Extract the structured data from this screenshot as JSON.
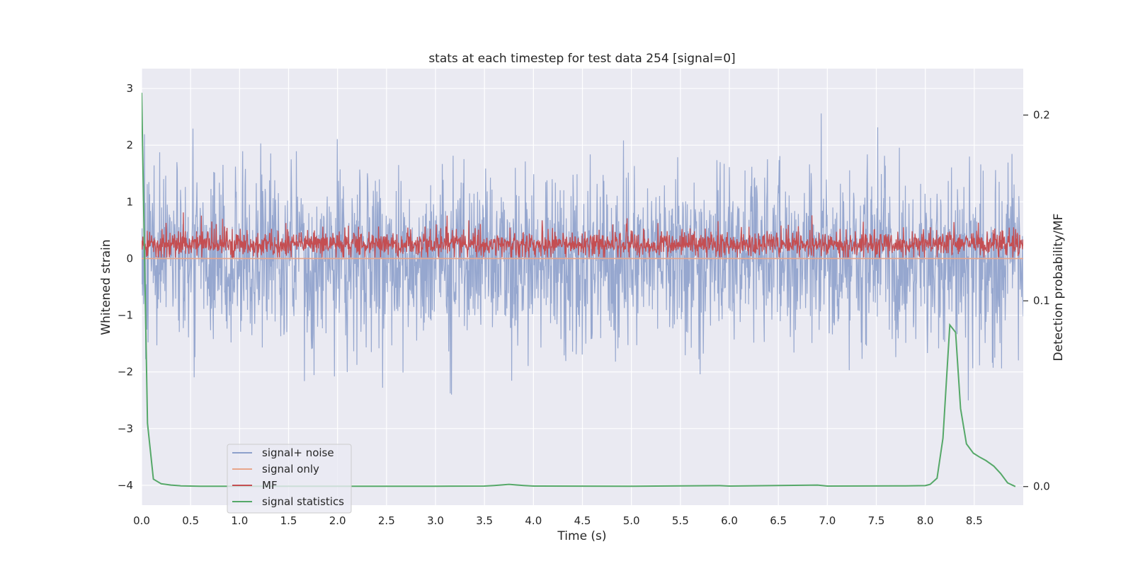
{
  "chart_data": {
    "type": "line",
    "title": "stats at each timestep for test data 254 [signal=0]",
    "xlabel": "Time (s)",
    "ylabel": "Whitened strain",
    "y2label": "Detection probability/MF",
    "xlim": [
      0,
      9
    ],
    "ylim": [
      -4.35,
      3.35
    ],
    "y2lim": [
      -0.01,
      0.225
    ],
    "x_ticks": [
      0.0,
      0.5,
      1.0,
      1.5,
      2.0,
      2.5,
      3.0,
      3.5,
      4.0,
      4.5,
      5.0,
      5.5,
      6.0,
      6.5,
      7.0,
      7.5,
      8.0,
      8.5
    ],
    "x_tick_labels": [
      "0.0",
      "0.5",
      "1.0",
      "1.5",
      "2.0",
      "2.5",
      "3.0",
      "3.5",
      "4.0",
      "4.5",
      "5.0",
      "5.5",
      "6.0",
      "6.5",
      "7.0",
      "7.5",
      "8.0",
      "8.5"
    ],
    "y_ticks": [
      -4,
      -3,
      -2,
      -1,
      0,
      1,
      2,
      3
    ],
    "y_tick_labels": [
      "−4",
      "−3",
      "−2",
      "−1",
      "0",
      "1",
      "2",
      "3"
    ],
    "y2_ticks": [
      0.0,
      0.1,
      0.2
    ],
    "y2_tick_labels": [
      "0.0",
      "0.1",
      "0.2"
    ],
    "grid": true,
    "legend_position": "lower-left",
    "series": [
      {
        "name": "signal+ noise",
        "color": "#8da0cb",
        "axis": "left",
        "style": "dense noise, approx. Gaussian with std 0.75, extremes about -3.1 to 3.0",
        "noise_std": 0.75,
        "noise_min": -3.1,
        "noise_max": 3.0
      },
      {
        "name": "signal only",
        "color": "#e8a58a",
        "axis": "left",
        "x": [
          0,
          9
        ],
        "y": [
          0,
          0
        ]
      },
      {
        "name": "MF",
        "color": "#c44e52",
        "axis": "left",
        "style": "dense noise, baseline 0.25, range about 0.0 to 1.0",
        "mf_base": 0.25,
        "mf_min": 0.0,
        "mf_max": 1.0
      },
      {
        "name": "signal statistics",
        "color": "#55a868",
        "axis": "right",
        "x": [
          0.0,
          0.06,
          0.12,
          0.2,
          0.3,
          0.4,
          0.6,
          1.0,
          2.0,
          3.0,
          3.5,
          3.6,
          3.75,
          3.9,
          4.0,
          5.0,
          5.9,
          6.0,
          6.9,
          7.0,
          7.7,
          7.8,
          8.0,
          8.05,
          8.12,
          8.18,
          8.25,
          8.31,
          8.36,
          8.42,
          8.49,
          8.55,
          8.62,
          8.7,
          8.77,
          8.84,
          8.92
        ],
        "y": [
          0.212,
          0.034,
          0.004,
          0.0015,
          0.0008,
          0.0004,
          0.0002,
          0.0002,
          0.0002,
          0.0002,
          0.0003,
          0.0006,
          0.0012,
          0.0006,
          0.0003,
          0.0002,
          0.0005,
          0.0003,
          0.0008,
          0.0003,
          0.0004,
          0.0004,
          0.0005,
          0.0012,
          0.0045,
          0.026,
          0.087,
          0.083,
          0.042,
          0.023,
          0.018,
          0.016,
          0.014,
          0.011,
          0.007,
          0.002,
          0.0
        ]
      }
    ]
  }
}
